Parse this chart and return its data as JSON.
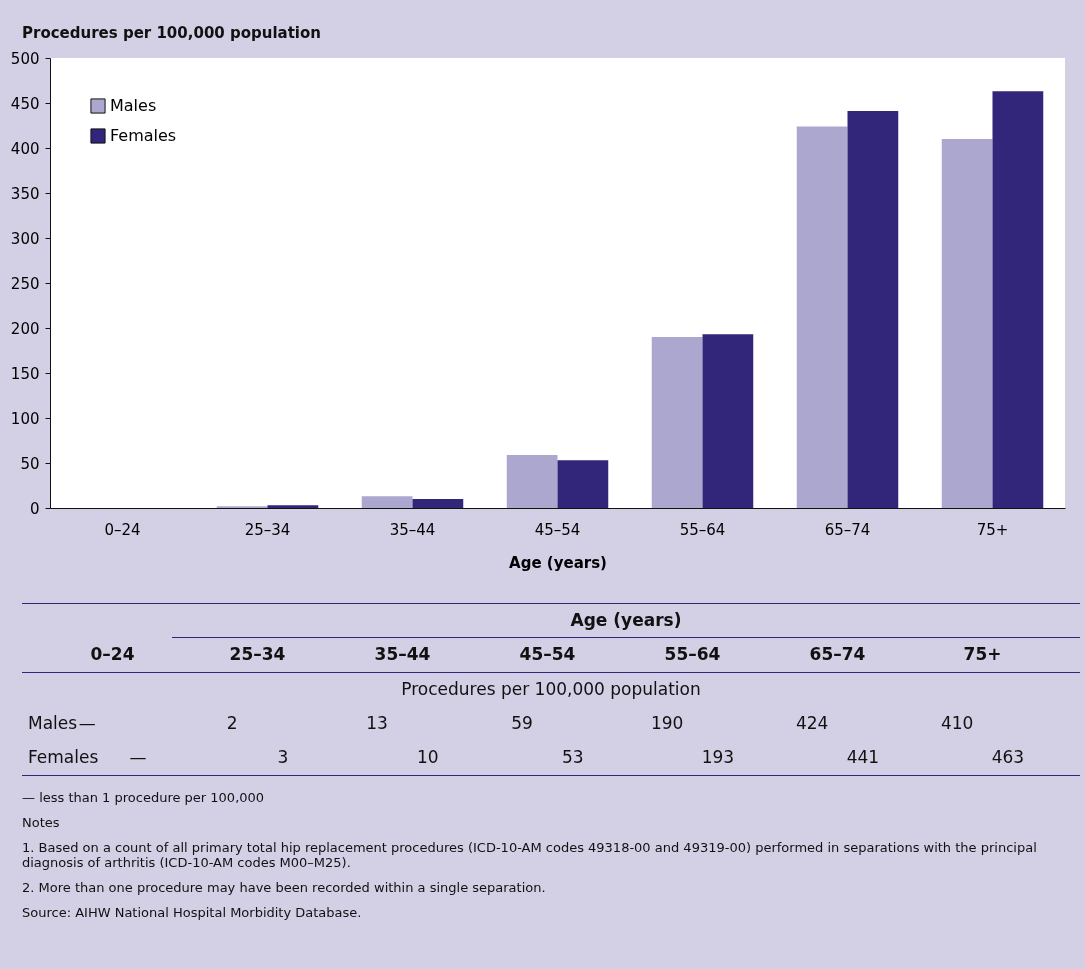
{
  "chart_data": {
    "type": "bar",
    "ylabel": "Procedures per 100,000 population",
    "xlabel": "Age (years)",
    "categories": [
      "0–24",
      "25–34",
      "35–44",
      "45–54",
      "55–64",
      "65–74",
      "75+"
    ],
    "series": [
      {
        "name": "Males",
        "color": "#aba7cf",
        "values": [
          0,
          2,
          13,
          59,
          190,
          424,
          410
        ],
        "value_labels": [
          "—",
          "2",
          "13",
          "59",
          "190",
          "424",
          "410"
        ]
      },
      {
        "name": "Females",
        "color": "#31267a",
        "values": [
          0,
          3,
          10,
          53,
          193,
          441,
          463
        ],
        "value_labels": [
          "—",
          "3",
          "10",
          "53",
          "193",
          "441",
          "463"
        ]
      }
    ],
    "ylim": [
      0,
      500
    ],
    "yticks": [
      0,
      50,
      100,
      150,
      200,
      250,
      300,
      350,
      400,
      450,
      500
    ],
    "grid": false,
    "legend": "top left",
    "annotations": [
      "— less than 1 procedure per 100,000",
      "Notes",
      "1. Based on a count of all primary total hip replacement procedures (ICD-10-AM codes 49318-00 and 49319-00) performed in separations with the principal diagnosis of arthritis (ICD-10-AM codes M00–M25).",
      "2. More than one procedure may have been recorded within a single separation.",
      "Source: AIHW National Hospital Morbidity Database."
    ]
  }
}
